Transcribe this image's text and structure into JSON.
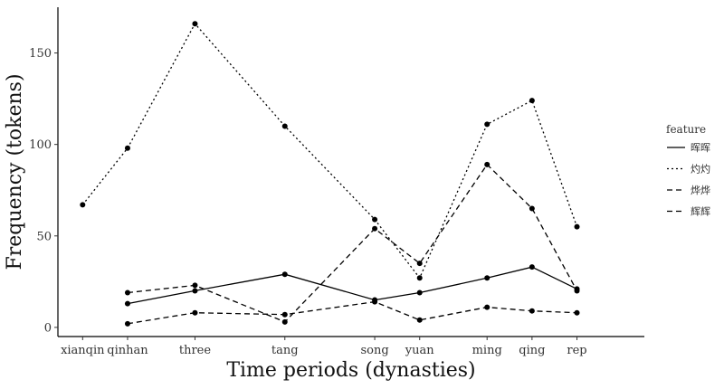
{
  "chart_data": {
    "type": "line",
    "xlabel": "Time periods (dynasties)",
    "ylabel": "Frequency (tokens)",
    "categories": [
      "xianqin",
      "qinhan",
      "three",
      "tang",
      "song",
      "yuan",
      "ming",
      "qing",
      "rep"
    ],
    "x": [
      1,
      2,
      3.5,
      5.5,
      7.5,
      8.5,
      10,
      11,
      12
    ],
    "xlim": [
      0.45,
      13.5
    ],
    "ylim": [
      -5,
      175
    ],
    "yticks": [
      0,
      50,
      100,
      150
    ],
    "legend": {
      "title": "feature",
      "position": "right"
    },
    "series": [
      {
        "name": "晖晖",
        "dash": "solid",
        "values": [
          null,
          13,
          20,
          29,
          15,
          19,
          27,
          33,
          21
        ]
      },
      {
        "name": "灼灼",
        "dash": "dotted",
        "values": [
          67,
          98,
          166,
          110,
          59,
          27,
          111,
          124,
          55
        ]
      },
      {
        "name": "烨烨",
        "dash": "dashed",
        "values": [
          null,
          19,
          23,
          3,
          54,
          35,
          89,
          65,
          20
        ]
      },
      {
        "name": "辉辉",
        "dash": "dashed",
        "values": [
          null,
          2,
          8,
          7,
          14,
          4,
          11,
          9,
          8
        ]
      }
    ],
    "grid": false
  }
}
